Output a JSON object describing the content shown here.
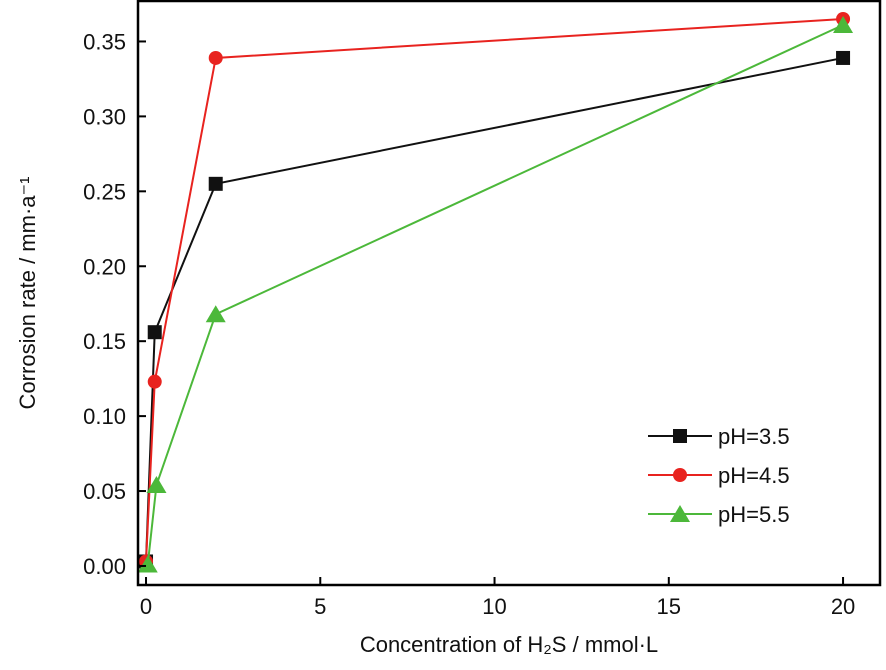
{
  "chart_data": {
    "type": "line",
    "title": "",
    "xlabel": "Concentration of H₂S / mmol·L",
    "ylabel": "Corrosion rate / mm·a⁻¹",
    "xlim": [
      -0.23,
      21.06
    ],
    "ylim": [
      -0.0127,
      0.377
    ],
    "xticks": [
      0,
      5,
      10,
      15,
      20
    ],
    "xtick_labels": [
      "0",
      "5",
      "10",
      "15",
      "20"
    ],
    "yticks": [
      0,
      0.05,
      0.1,
      0.15,
      0.2,
      0.25,
      0.3,
      0.35
    ],
    "ytick_labels": [
      "0.00",
      "0.05",
      "0.10",
      "0.15",
      "0.20",
      "0.25",
      "0.30",
      "0.35"
    ],
    "grid": false,
    "legend_position": "bottom-right",
    "series": [
      {
        "name": "pH=3.5",
        "color": "#111111",
        "marker": "square",
        "x": [
          0,
          0.25,
          2,
          20
        ],
        "y": [
          0.003,
          0.156,
          0.255,
          0.339
        ]
      },
      {
        "name": "pH=4.5",
        "color": "#e8231f",
        "marker": "circle",
        "x": [
          0,
          0.25,
          2,
          20
        ],
        "y": [
          0.003,
          0.123,
          0.339,
          0.365
        ]
      },
      {
        "name": "pH=5.5",
        "color": "#4cb83a",
        "marker": "triangle",
        "x": [
          0.05,
          0.3,
          2,
          20
        ],
        "y": [
          0.001,
          0.054,
          0.168,
          0.361
        ]
      }
    ]
  }
}
